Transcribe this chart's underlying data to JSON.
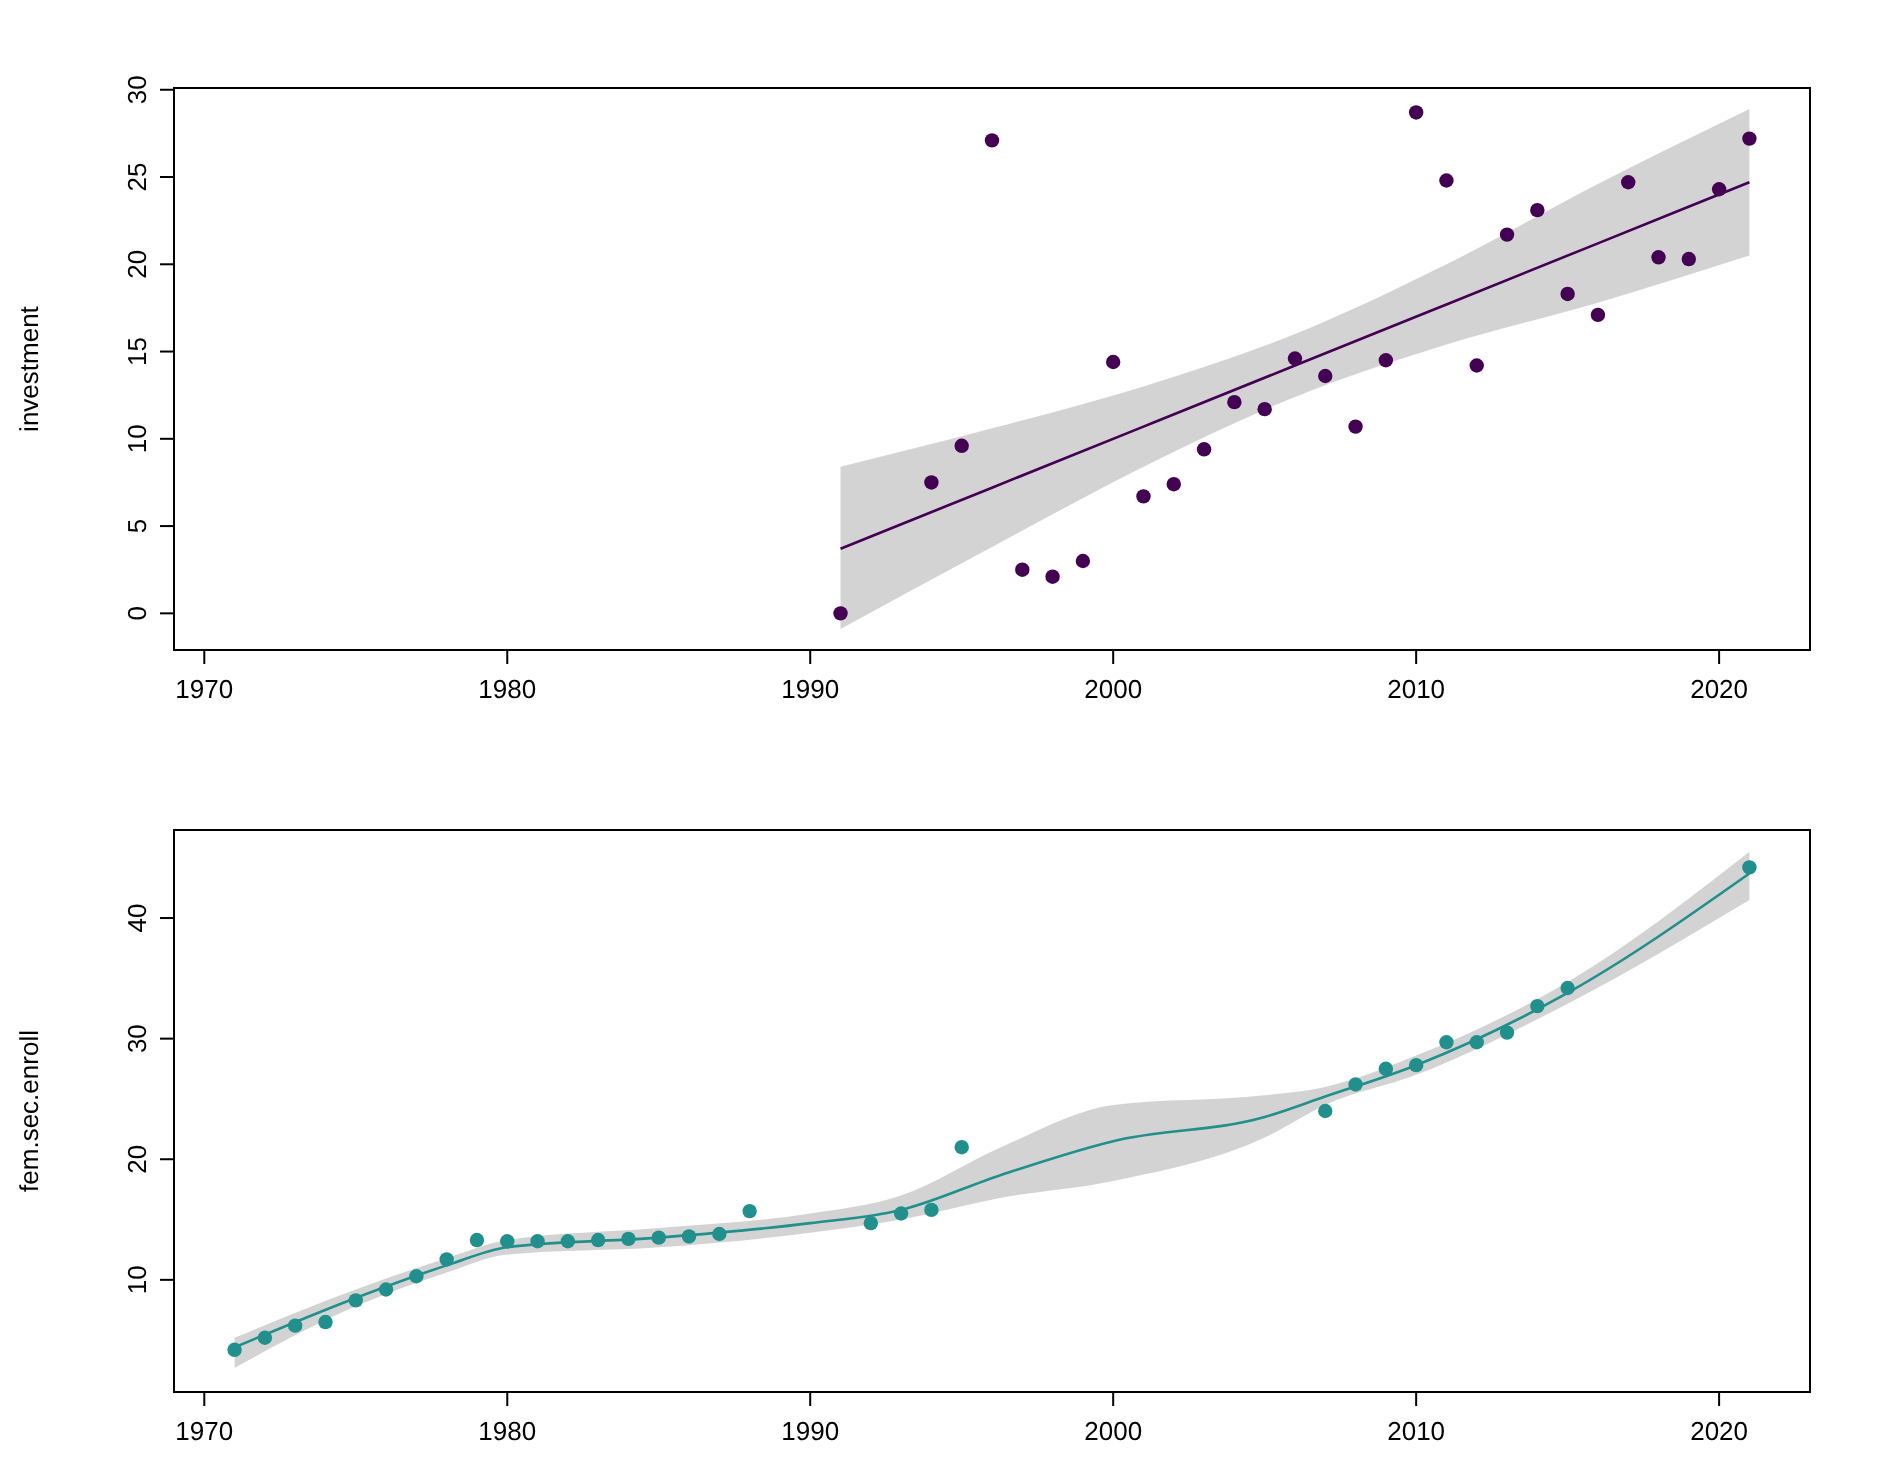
{
  "chart_data": [
    {
      "type": "scatter",
      "ylabel": "investment",
      "xlim": [
        1969,
        2023
      ],
      "xticks": [
        1970,
        1980,
        1990,
        2000,
        2010,
        2020
      ],
      "ylim": [
        -2.1,
        30.1
      ],
      "yticks": [
        0,
        5,
        10,
        15,
        20,
        25,
        30
      ],
      "grid": false,
      "series": [
        {
          "type": "line",
          "color": "#440154",
          "marker": "none",
          "x": [
            1991,
            1996,
            2001,
            2006,
            2011,
            2016,
            2021
          ],
          "values": [
            3.7,
            7.2,
            10.7,
            14.2,
            17.7,
            21.2,
            24.7
          ],
          "lower": [
            -0.9,
            3.8,
            8.4,
            12.4,
            15.4,
            17.8,
            20.5
          ],
          "upper": [
            8.4,
            10.6,
            13.0,
            16.0,
            20.0,
            24.6,
            28.9
          ]
        },
        {
          "color": "#440154",
          "marker": "circle",
          "x": [
            1991,
            1994,
            1995,
            1996,
            1997,
            1998,
            1999,
            2000,
            2001,
            2002,
            2003,
            2004,
            2005,
            2006,
            2007,
            2008,
            2009,
            2010,
            2011,
            2012,
            2013,
            2014,
            2015,
            2016,
            2017,
            2018,
            2019,
            2020,
            2021
          ],
          "values": [
            0,
            7.5,
            9.6,
            27.1,
            2.5,
            2.1,
            3.0,
            14.4,
            6.7,
            7.4,
            9.4,
            12.1,
            11.7,
            14.6,
            13.6,
            10.7,
            14.5,
            28.7,
            24.8,
            14.2,
            21.7,
            23.1,
            18.3,
            17.1,
            24.7,
            20.4,
            20.3,
            24.3,
            27.2
          ]
        }
      ]
    },
    {
      "type": "scatter",
      "ylabel": "fem.sec.enroll",
      "xlim": [
        1969,
        2023
      ],
      "xticks": [
        1970,
        1980,
        1990,
        2000,
        2010,
        2020
      ],
      "ylim": [
        0.7,
        47.3
      ],
      "yticks": [
        10,
        20,
        30,
        40
      ],
      "grid": false,
      "series": [
        {
          "type": "line",
          "color": "#21908c",
          "marker": "none",
          "x": [
            1971,
            1975,
            1978,
            1980,
            1985,
            1990,
            1993,
            1996.3,
            2000,
            2005,
            2007,
            2010,
            2015,
            2021
          ],
          "values": [
            4.4,
            8.5,
            11.2,
            12.7,
            13.5,
            14.7,
            15.8,
            18.7,
            21.5,
            23.5,
            25.2,
            27.8,
            33.8,
            43.7
          ],
          "lower": [
            2.7,
            7.8,
            10.6,
            12.1,
            12.7,
            13.9,
            15.0,
            16.8,
            18.2,
            21.8,
            24.5,
            27.0,
            32.9,
            41.5
          ],
          "upper": [
            5.2,
            9.2,
            11.8,
            13.3,
            14.3,
            15.5,
            17.0,
            21.0,
            24.5,
            25.3,
            26.0,
            28.6,
            34.7,
            45.5
          ]
        },
        {
          "color": "#21908c",
          "marker": "circle",
          "x": [
            1971,
            1972,
            1973,
            1974,
            1975,
            1976,
            1977,
            1978,
            1979,
            1980,
            1981,
            1982,
            1983,
            1984,
            1985,
            1986,
            1987,
            1988,
            1992,
            1993,
            1994,
            1995,
            2007,
            2008,
            2009,
            2010,
            2011,
            2012,
            2013,
            2014,
            2015,
            2021
          ],
          "values": [
            4.2,
            5.2,
            6.2,
            6.5,
            8.3,
            9.2,
            10.3,
            11.7,
            13.3,
            13.2,
            13.2,
            13.2,
            13.3,
            13.4,
            13.5,
            13.6,
            13.8,
            15.7,
            14.7,
            15.5,
            15.8,
            21.0,
            24.0,
            26.2,
            27.5,
            27.8,
            29.7,
            29.7,
            30.5,
            32.7,
            34.2,
            44.2
          ]
        }
      ]
    }
  ]
}
